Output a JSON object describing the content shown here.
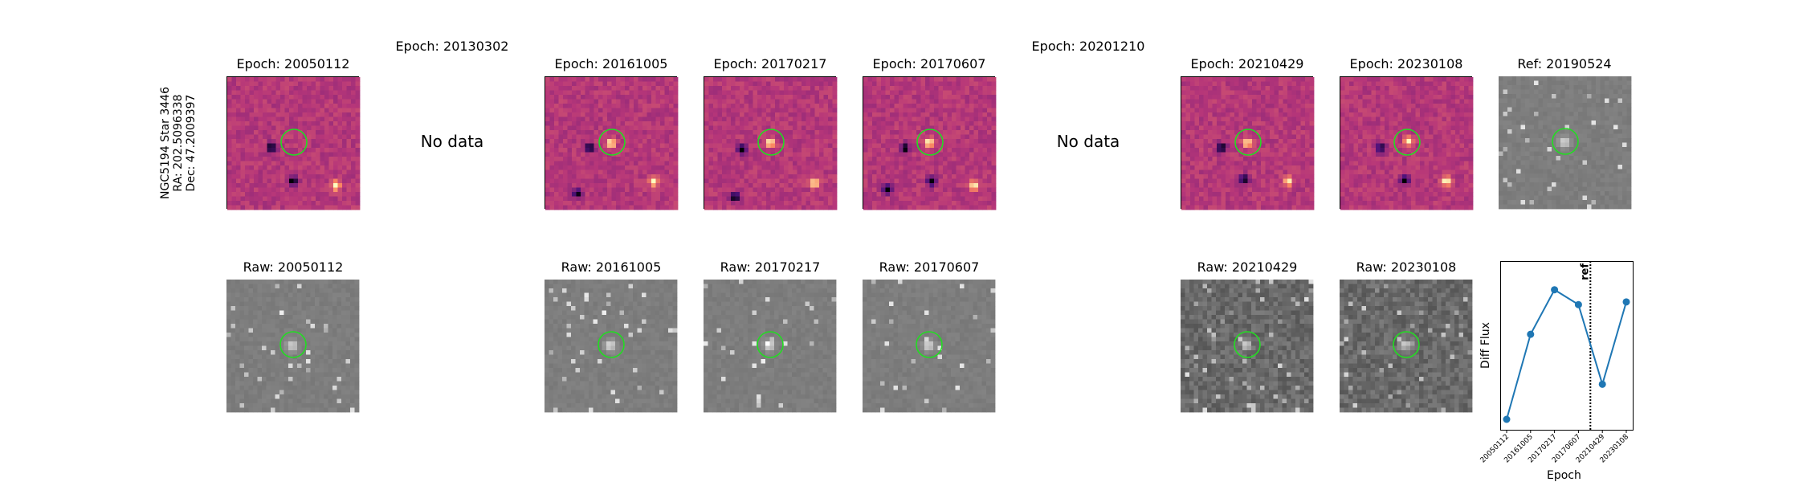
{
  "star_label": {
    "line1": "NGC5194 Star 3446",
    "line2": "RA: 202.5096338",
    "line3": "Dec: 47.2009397"
  },
  "top_titles": [
    "Epoch: 20050112",
    "Epoch: 20130302",
    "Epoch: 20161005",
    "Epoch: 20170217",
    "Epoch: 20170607",
    "Epoch: 20201210",
    "Epoch: 20210429",
    "Epoch: 20230108",
    "Ref: 20190524"
  ],
  "no_data_text": "No data",
  "bottom_titles": [
    "Raw: 20050112",
    "Raw: 20161005",
    "Raw: 20170217",
    "Raw: 20170607",
    "Raw: 20210429",
    "Raw: 20230108"
  ],
  "colors": {
    "circle": "#22dd22",
    "line": "#1f77b4"
  },
  "chart_data": {
    "type": "line",
    "categories": [
      "20050112",
      "20161005",
      "20170217",
      "20170607",
      "20210429",
      "20230108"
    ],
    "values": [
      0.0,
      0.63,
      0.96,
      0.85,
      0.26,
      0.87
    ],
    "xlabel": "Epoch",
    "ylabel": "Diff Flux",
    "ref_label": "ref",
    "ref_position_between": [
      3,
      4
    ],
    "grid": false
  }
}
